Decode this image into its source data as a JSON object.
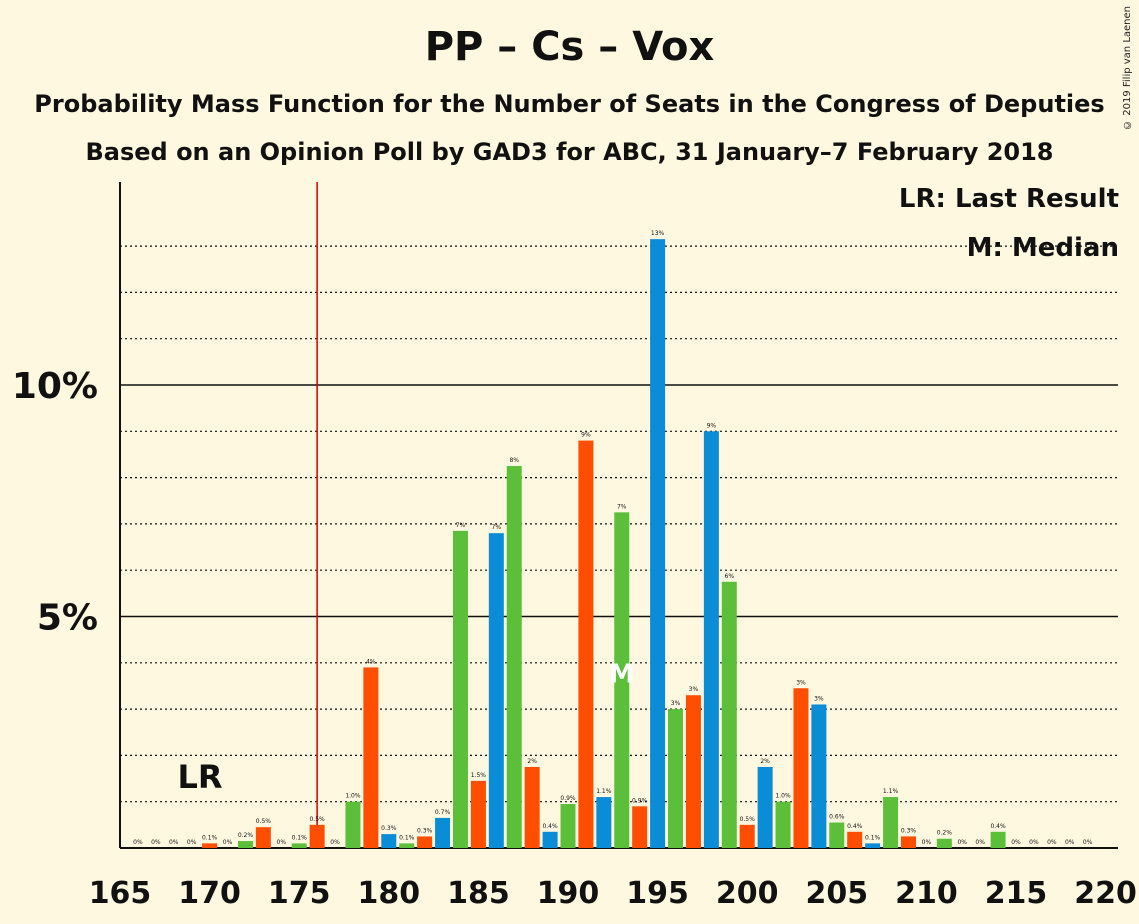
{
  "title": "PP – Cs – Vox",
  "subtitle1": "Probability Mass Function for the Number of Seats in the Congress of Deputies",
  "subtitle2": "Based on an Opinion Poll by GAD3 for ABC, 31 January–7 February 2018",
  "legend": {
    "lr": "LR: Last Result",
    "median": "M: Median"
  },
  "copyright": "© 2019 Filip van Laenen",
  "markers": {
    "lr_text": "LR",
    "lr_seat": 176,
    "median_text": "M",
    "median_seat": 193
  },
  "colors": {
    "background": "#FFF8E1",
    "bar_colors": [
      "#0A8CD6",
      "#5BBF3A",
      "#FF4E00"
    ],
    "lr_line": "#CC0000"
  },
  "chart_data": {
    "type": "bar",
    "xlabel": "",
    "ylabel": "",
    "xlim": [
      165,
      220
    ],
    "ylim": [
      0,
      14.4
    ],
    "x_ticks": [
      165,
      170,
      175,
      180,
      185,
      190,
      195,
      200,
      205,
      210,
      215,
      220
    ],
    "y_ticks": [
      {
        "value": 5,
        "label": "5%"
      },
      {
        "value": 10,
        "label": "10%"
      }
    ],
    "grid": "dotted every 1%",
    "seats": [
      166,
      167,
      168,
      169,
      170,
      171,
      172,
      173,
      174,
      175,
      176,
      177,
      178,
      179,
      180,
      181,
      182,
      183,
      184,
      185,
      186,
      187,
      188,
      189,
      190,
      191,
      192,
      193,
      194,
      195,
      196,
      197,
      198,
      199,
      200,
      201,
      202,
      203,
      204,
      205,
      206,
      207,
      208,
      209,
      210,
      211,
      212,
      213,
      214,
      215,
      216,
      217,
      218,
      219
    ],
    "values": [
      0,
      0,
      0,
      0,
      0.1,
      0,
      0.15,
      0.45,
      0,
      0.1,
      0.5,
      0,
      1.0,
      3.9,
      0.3,
      0.1,
      0.25,
      0.65,
      6.85,
      1.45,
      6.8,
      8.25,
      1.75,
      0.35,
      0.95,
      8.8,
      1.1,
      7.25,
      0.9,
      13.15,
      3.0,
      3.3,
      9.0,
      5.75,
      0.5,
      1.75,
      1.0,
      3.45,
      3.1,
      0.55,
      0.35,
      0.1,
      1.1,
      0.25,
      0,
      0.2,
      0,
      0,
      0.35,
      0,
      0,
      0,
      0,
      0
    ],
    "labels": [
      "0%",
      "0%",
      "0%",
      "0%",
      "0.1%",
      "0%",
      "0.2%",
      "0.5%",
      "0%",
      "0.1%",
      "0.5%",
      "0%",
      "1.0%",
      "4%",
      "0.3%",
      "0.1%",
      "0.3%",
      "0.7%",
      "7%",
      "1.5%",
      "7%",
      "8%",
      "2%",
      "0.4%",
      "0.9%",
      "9%",
      "1.1%",
      "7%",
      "0.9%",
      "13%",
      "3%",
      "3%",
      "9%",
      "6%",
      "0.5%",
      "2%",
      "1.0%",
      "3%",
      "3%",
      "0.6%",
      "0.4%",
      "0.1%",
      "1.1%",
      "0.3%",
      "0%",
      "0.2%",
      "0%",
      "0%",
      "0.4%",
      "0%",
      "0%",
      "0%",
      "0%",
      "0%"
    ]
  }
}
